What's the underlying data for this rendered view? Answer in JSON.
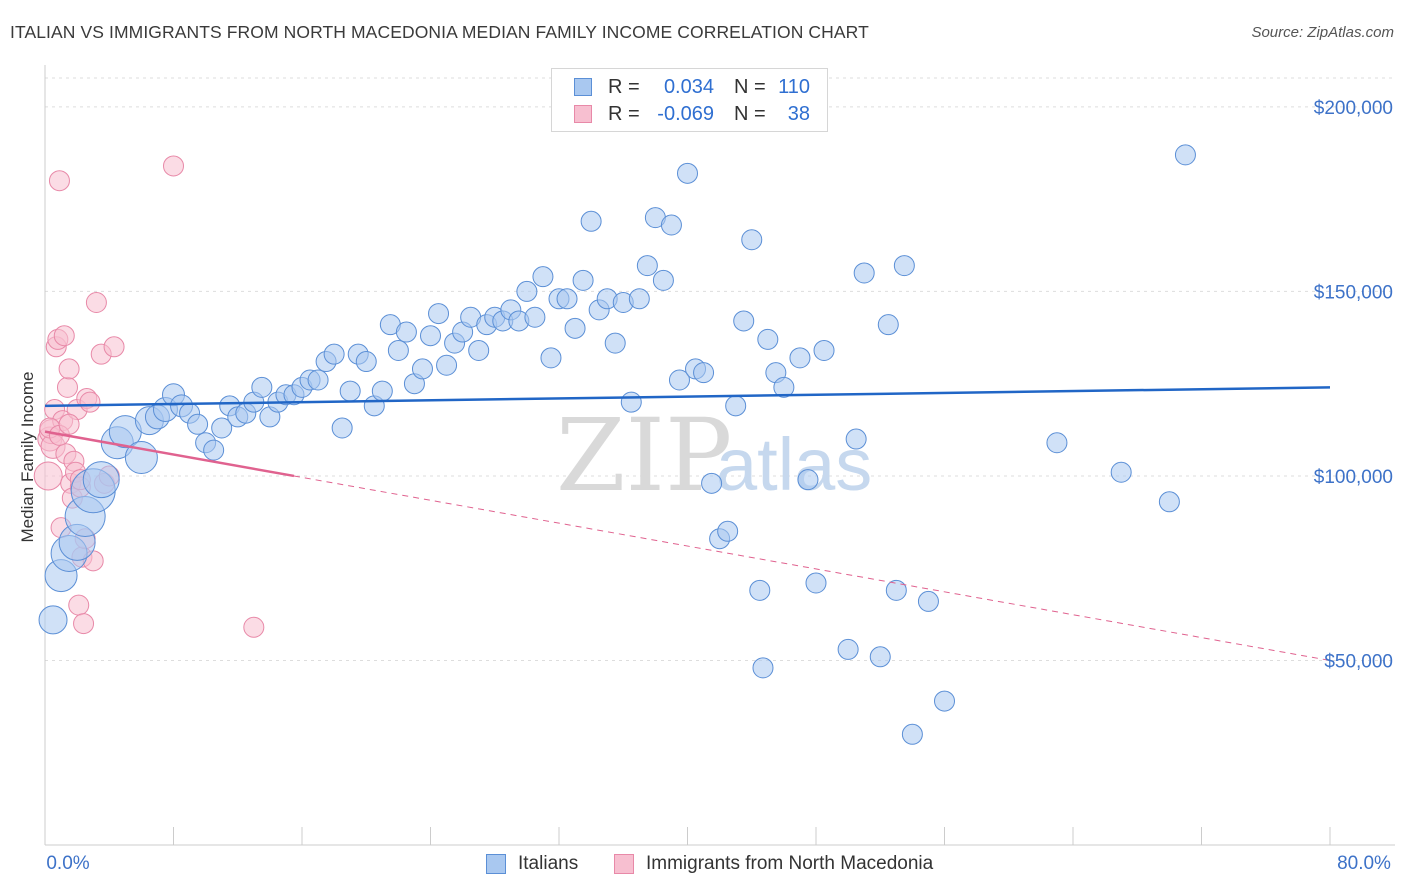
{
  "title": "ITALIAN VS IMMIGRANTS FROM NORTH MACEDONIA MEDIAN FAMILY INCOME CORRELATION CHART",
  "source": "Source: ZipAtlas.com",
  "watermark": {
    "zip": "ZIP",
    "atlas": "atlas"
  },
  "legend": {
    "italians": {
      "r_label": "R =",
      "r_value": "0.034",
      "n_label": "N =",
      "n_value": "110"
    },
    "macedonia": {
      "r_label": "R =",
      "r_value": "-0.069",
      "n_label": "N =",
      "n_value": "38"
    }
  },
  "bottom_legend": {
    "italians": "Italians",
    "macedonia": "Immigrants from North Macedonia"
  },
  "colors": {
    "italians_fill": "#a9c8f0",
    "italians_stroke": "#5b8fd6",
    "italians_line": "#2166c6",
    "macedonia_fill": "#f7bfd0",
    "macedonia_stroke": "#e889a8",
    "macedonia_line": "#e0628f",
    "tick_text": "#3d72c8",
    "grid": "#dddddd"
  },
  "chart_data": {
    "type": "scatter",
    "title": "ITALIAN VS IMMIGRANTS FROM NORTH MACEDONIA MEDIAN FAMILY INCOME CORRELATION CHART",
    "xlabel": "",
    "ylabel": "Median Family Income",
    "xlim": [
      0,
      80
    ],
    "ylim": [
      0,
      210000
    ],
    "x_tick_labels": [
      "0.0%",
      "80.0%"
    ],
    "y_ticks": [
      50000,
      100000,
      150000,
      200000
    ],
    "y_tick_labels": [
      "$50,000",
      "$100,000",
      "$150,000",
      "$200,000"
    ],
    "grid": true,
    "series": [
      {
        "name": "Italians",
        "trend": {
          "x": [
            0,
            80
          ],
          "y": [
            119000,
            124000
          ]
        },
        "points": [
          [
            0.5,
            61000,
            14
          ],
          [
            1,
            73000,
            16
          ],
          [
            1.5,
            79000,
            18
          ],
          [
            2,
            82000,
            18
          ],
          [
            2.5,
            89000,
            20
          ],
          [
            3,
            96000,
            22
          ],
          [
            3.5,
            99000,
            18
          ],
          [
            4.5,
            109000,
            16
          ],
          [
            5,
            112000,
            16
          ],
          [
            6,
            105000,
            16
          ],
          [
            6.5,
            115000,
            14
          ],
          [
            7,
            116000,
            12
          ],
          [
            7.5,
            118000,
            12
          ],
          [
            8,
            122000,
            11
          ],
          [
            8.5,
            119000,
            11
          ],
          [
            9,
            117000,
            10
          ],
          [
            9.5,
            114000,
            10
          ],
          [
            10,
            109000,
            10
          ],
          [
            10.5,
            107000,
            10
          ],
          [
            11,
            113000,
            10
          ],
          [
            11.5,
            119000,
            10
          ],
          [
            12,
            116000,
            10
          ],
          [
            12.5,
            117000,
            10
          ],
          [
            13,
            120000,
            10
          ],
          [
            13.5,
            124000,
            10
          ],
          [
            14,
            116000,
            10
          ],
          [
            14.5,
            120000,
            10
          ],
          [
            15,
            122000,
            10
          ],
          [
            15.5,
            122000,
            10
          ],
          [
            16,
            124000,
            10
          ],
          [
            16.5,
            126000,
            10
          ],
          [
            17,
            126000,
            10
          ],
          [
            17.5,
            131000,
            10
          ],
          [
            18,
            133000,
            10
          ],
          [
            18.5,
            113000,
            10
          ],
          [
            19,
            123000,
            10
          ],
          [
            19.5,
            133000,
            10
          ],
          [
            20,
            131000,
            10
          ],
          [
            20.5,
            119000,
            10
          ],
          [
            21,
            123000,
            10
          ],
          [
            21.5,
            141000,
            10
          ],
          [
            22,
            134000,
            10
          ],
          [
            22.5,
            139000,
            10
          ],
          [
            23,
            125000,
            10
          ],
          [
            23.5,
            129000,
            10
          ],
          [
            24,
            138000,
            10
          ],
          [
            24.5,
            144000,
            10
          ],
          [
            25,
            130000,
            10
          ],
          [
            25.5,
            136000,
            10
          ],
          [
            26,
            139000,
            10
          ],
          [
            26.5,
            143000,
            10
          ],
          [
            27,
            134000,
            10
          ],
          [
            27.5,
            141000,
            10
          ],
          [
            28,
            143000,
            10
          ],
          [
            28.5,
            142000,
            10
          ],
          [
            29,
            145000,
            10
          ],
          [
            29.5,
            142000,
            10
          ],
          [
            30,
            150000,
            10
          ],
          [
            30.5,
            143000,
            10
          ],
          [
            31,
            154000,
            10
          ],
          [
            31.5,
            132000,
            10
          ],
          [
            32,
            148000,
            10
          ],
          [
            32.5,
            148000,
            10
          ],
          [
            33,
            140000,
            10
          ],
          [
            33.5,
            153000,
            10
          ],
          [
            34,
            169000,
            10
          ],
          [
            34.5,
            145000,
            10
          ],
          [
            35,
            148000,
            10
          ],
          [
            35.5,
            136000,
            10
          ],
          [
            36,
            147000,
            10
          ],
          [
            36.5,
            120000,
            10
          ],
          [
            37,
            148000,
            10
          ],
          [
            37.5,
            157000,
            10
          ],
          [
            38,
            170000,
            10
          ],
          [
            38.5,
            153000,
            10
          ],
          [
            39,
            168000,
            10
          ],
          [
            39.5,
            126000,
            10
          ],
          [
            40,
            182000,
            10
          ],
          [
            40.5,
            129000,
            10
          ],
          [
            41,
            128000,
            10
          ],
          [
            41.5,
            98000,
            10
          ],
          [
            42,
            83000,
            10
          ],
          [
            42.5,
            85000,
            10
          ],
          [
            43,
            119000,
            10
          ],
          [
            43.5,
            142000,
            10
          ],
          [
            44,
            164000,
            10
          ],
          [
            44.5,
            69000,
            10
          ],
          [
            44.7,
            48000,
            10
          ],
          [
            45,
            137000,
            10
          ],
          [
            45.5,
            128000,
            10
          ],
          [
            46,
            124000,
            10
          ],
          [
            47,
            132000,
            10
          ],
          [
            47.5,
            99000,
            10
          ],
          [
            48,
            71000,
            10
          ],
          [
            48.5,
            134000,
            10
          ],
          [
            50,
            53000,
            10
          ],
          [
            50.5,
            110000,
            10
          ],
          [
            51,
            155000,
            10
          ],
          [
            52,
            51000,
            10
          ],
          [
            52.5,
            141000,
            10
          ],
          [
            53,
            69000,
            10
          ],
          [
            53.5,
            157000,
            10
          ],
          [
            54,
            30000,
            10
          ],
          [
            55,
            66000,
            10
          ],
          [
            56,
            39000,
            10
          ],
          [
            63,
            109000,
            10
          ],
          [
            67,
            101000,
            10
          ],
          [
            70,
            93000,
            10
          ],
          [
            71,
            187000,
            10
          ]
        ]
      },
      {
        "name": "Immigrants from North Macedonia",
        "trend": {
          "x": [
            0,
            15.5
          ],
          "y": [
            112000,
            100000
          ]
        },
        "trend_dashed": {
          "x": [
            15.5,
            80
          ],
          "y": [
            100000,
            50000
          ]
        },
        "points": [
          [
            0.2,
            100000,
            14
          ],
          [
            0.3,
            110000,
            12
          ],
          [
            0.4,
            112000,
            12
          ],
          [
            0.5,
            108000,
            12
          ],
          [
            0.6,
            118000,
            10
          ],
          [
            0.7,
            135000,
            10
          ],
          [
            0.8,
            137000,
            10
          ],
          [
            0.9,
            180000,
            10
          ],
          [
            1,
            86000,
            10
          ],
          [
            1.1,
            115000,
            10
          ],
          [
            1.2,
            138000,
            10
          ],
          [
            1.3,
            106000,
            10
          ],
          [
            1.4,
            124000,
            10
          ],
          [
            1.5,
            129000,
            10
          ],
          [
            1.6,
            98000,
            10
          ],
          [
            1.7,
            94000,
            10
          ],
          [
            1.8,
            104000,
            10
          ],
          [
            1.9,
            101000,
            10
          ],
          [
            2,
            118000,
            10
          ],
          [
            2.1,
            65000,
            10
          ],
          [
            2.2,
            97000,
            10
          ],
          [
            2.3,
            78000,
            10
          ],
          [
            2.4,
            60000,
            10
          ],
          [
            2.5,
            83000,
            10
          ],
          [
            2.6,
            121000,
            10
          ],
          [
            2.8,
            120000,
            10
          ],
          [
            3,
            77000,
            10
          ],
          [
            3.2,
            147000,
            10
          ],
          [
            3.5,
            133000,
            10
          ],
          [
            3.7,
            98000,
            10
          ],
          [
            4,
            100000,
            10
          ],
          [
            4.3,
            135000,
            10
          ],
          [
            8,
            184000,
            10
          ],
          [
            13,
            59000,
            10
          ],
          [
            0.3,
            113000,
            10
          ],
          [
            0.9,
            111000,
            10
          ],
          [
            1.5,
            114000,
            10
          ],
          [
            2.2,
            99000,
            10
          ]
        ]
      }
    ]
  }
}
